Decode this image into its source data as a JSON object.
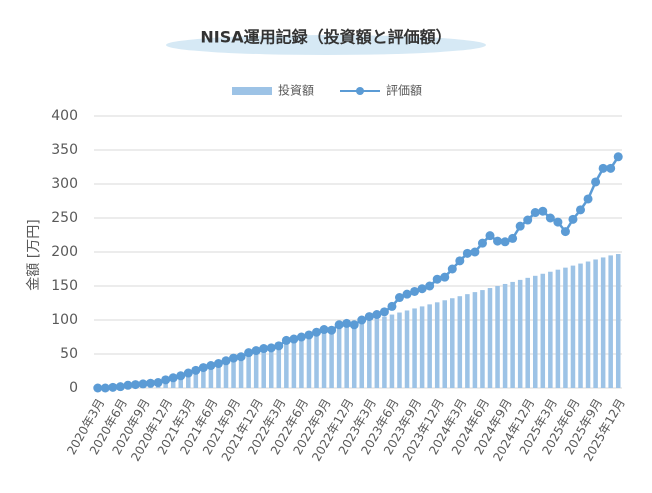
{
  "chart_data": {
    "type": "combo",
    "title": "NISA運用記録（投資額と評価額）",
    "y_label": "金額 [万円]",
    "categories": [
      "2020年3月",
      null,
      null,
      "2020年6月",
      null,
      null,
      "2020年9月",
      null,
      null,
      "2020年12月",
      null,
      null,
      "2021年3月",
      null,
      null,
      "2021年6月",
      null,
      null,
      "2021年9月",
      null,
      null,
      "2021年12月",
      null,
      null,
      "2022年3月",
      null,
      null,
      "2022年6月",
      null,
      null,
      "2022年9月",
      null,
      null,
      "2022年12月",
      null,
      null,
      "2023年3月",
      null,
      null,
      "2023年6月",
      null,
      null,
      "2023年9月",
      null,
      null,
      "2023年12月",
      null,
      null,
      "2024年3月",
      null,
      null,
      "2024年6月",
      null,
      null,
      "2024年9月",
      null,
      null,
      "2024年12月",
      null,
      null,
      "2025年3月",
      null,
      null,
      "2025年6月",
      null,
      null,
      "2025年9月",
      null,
      null,
      "2025年12月"
    ],
    "series": [
      {
        "name": "投資額",
        "type": "bar",
        "color": "#9dc3e6",
        "values": [
          0,
          1,
          2,
          3,
          4,
          6,
          7,
          8,
          9,
          11,
          14,
          17,
          20,
          24,
          27,
          30,
          34,
          37,
          41,
          44,
          48,
          51,
          55,
          58,
          62,
          65,
          69,
          72,
          75,
          78,
          81,
          84,
          87,
          90,
          93,
          96,
          99,
          102,
          105,
          108,
          111,
          114,
          117,
          120,
          123,
          126,
          129,
          132,
          135,
          138,
          141,
          144,
          147,
          150,
          153,
          156,
          159,
          162,
          165,
          168,
          171,
          174,
          177,
          180,
          183,
          186,
          189,
          192,
          195,
          197
        ]
      },
      {
        "name": "評価額",
        "type": "line",
        "color": "#5b9bd5",
        "values": [
          0,
          0,
          1,
          2,
          4,
          5,
          6,
          7,
          8,
          12,
          15,
          18,
          22,
          26,
          30,
          33,
          36,
          40,
          44,
          46,
          52,
          55,
          58,
          59,
          62,
          70,
          72,
          75,
          78,
          82,
          86,
          85,
          93,
          95,
          93,
          100,
          105,
          108,
          112,
          120,
          133,
          138,
          142,
          146,
          150,
          160,
          163,
          175,
          187,
          198,
          200,
          213,
          224,
          216,
          215,
          220,
          238,
          247,
          258,
          260,
          250,
          244,
          230,
          248,
          262,
          278,
          303,
          323,
          323,
          340
        ]
      }
    ],
    "ylim": [
      0,
      400
    ],
    "yticks": [
      0,
      50,
      100,
      150,
      200,
      250,
      300,
      350,
      400
    ],
    "grid": true,
    "legend": "top"
  }
}
